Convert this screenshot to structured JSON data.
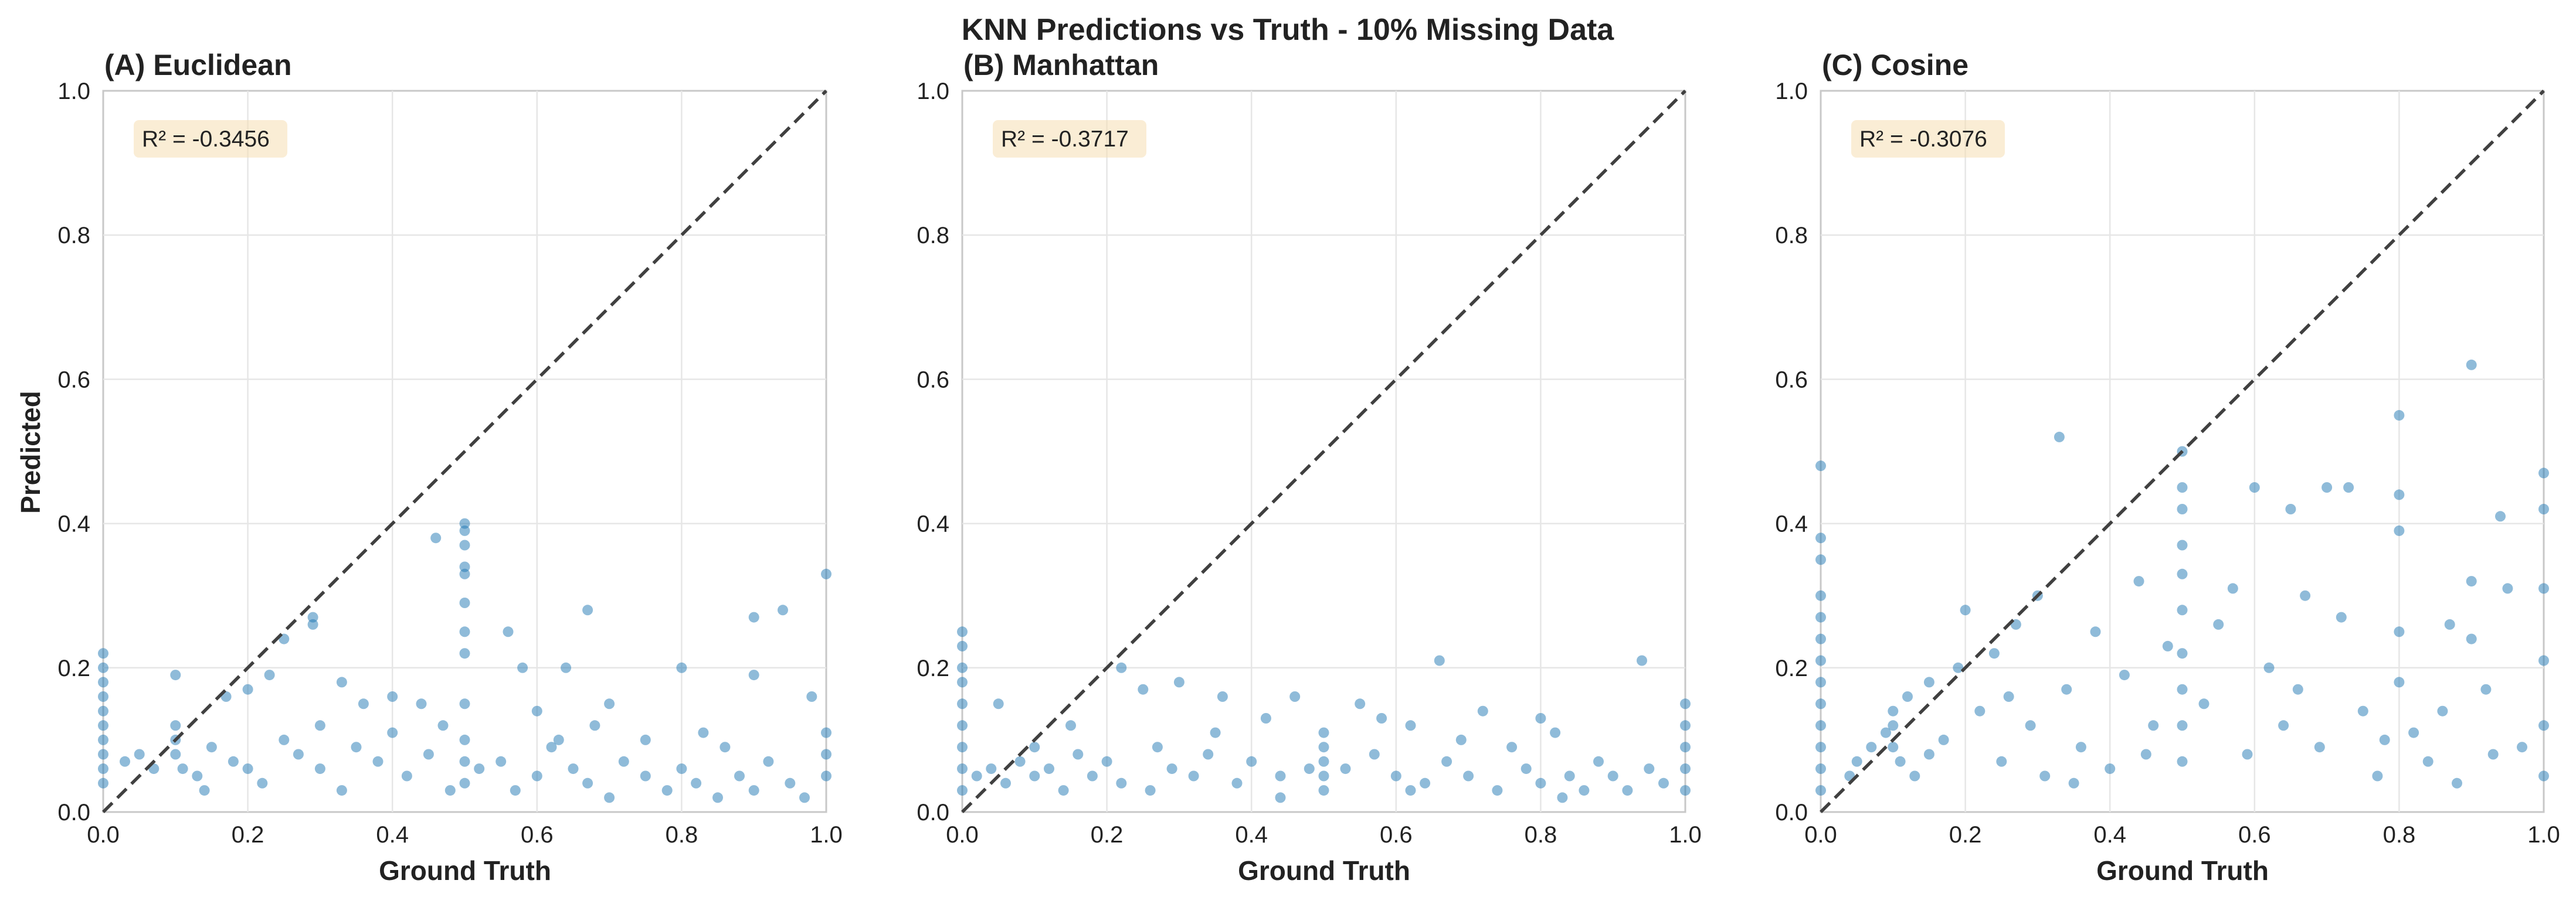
{
  "chart_data": {
    "title": "KNN Predictions vs Truth - 10% Missing Data",
    "type": "scatter",
    "xlabel": "Ground Truth",
    "ylabel": "Predicted",
    "xlim": [
      0,
      1
    ],
    "ylim": [
      0,
      1
    ],
    "ticks": [
      "0.0",
      "0.2",
      "0.4",
      "0.6",
      "0.8",
      "1.0"
    ],
    "grid": true,
    "reference_line": "y = x (dashed)",
    "point_color": "#1f77b4",
    "panels": [
      {
        "id": "A",
        "title": "(A) Euclidean",
        "r2_text": "R² = -0.3456",
        "points": [
          [
            0.5,
            0.4
          ],
          [
            0.5,
            0.39
          ],
          [
            0.5,
            0.37
          ],
          [
            0.5,
            0.34
          ],
          [
            0.5,
            0.33
          ],
          [
            0.5,
            0.29
          ],
          [
            0.5,
            0.25
          ],
          [
            0.5,
            0.22
          ],
          [
            0.5,
            0.15
          ],
          [
            0.5,
            0.1
          ],
          [
            0.5,
            0.07
          ],
          [
            0.5,
            0.04
          ],
          [
            0.46,
            0.38
          ],
          [
            0.29,
            0.27
          ],
          [
            0.29,
            0.26
          ],
          [
            0.25,
            0.24
          ],
          [
            0.1,
            0.19
          ],
          [
            0.56,
            0.25
          ],
          [
            0.58,
            0.2
          ],
          [
            0.67,
            0.28
          ],
          [
            0.64,
            0.2
          ],
          [
            0.8,
            0.2
          ],
          [
            0.9,
            0.27
          ],
          [
            0.94,
            0.28
          ],
          [
            1.0,
            0.33
          ],
          [
            0.9,
            0.19
          ],
          [
            0.17,
            0.16
          ],
          [
            0.2,
            0.17
          ],
          [
            0.23,
            0.19
          ],
          [
            0.33,
            0.18
          ],
          [
            0.36,
            0.15
          ],
          [
            0.4,
            0.16
          ],
          [
            0.44,
            0.15
          ],
          [
            0.6,
            0.14
          ],
          [
            0.7,
            0.15
          ],
          [
            0.75,
            0.1
          ],
          [
            0.86,
            0.09
          ],
          [
            0.98,
            0.16
          ],
          [
            0.0,
            0.22
          ],
          [
            0.0,
            0.2
          ],
          [
            0.0,
            0.18
          ],
          [
            0.0,
            0.16
          ],
          [
            0.0,
            0.14
          ],
          [
            0.0,
            0.12
          ],
          [
            0.0,
            0.1
          ],
          [
            0.0,
            0.08
          ],
          [
            0.0,
            0.06
          ],
          [
            0.0,
            0.04
          ],
          [
            0.03,
            0.07
          ],
          [
            0.05,
            0.08
          ],
          [
            0.07,
            0.06
          ],
          [
            0.1,
            0.12
          ],
          [
            0.1,
            0.1
          ],
          [
            0.1,
            0.08
          ],
          [
            0.11,
            0.06
          ],
          [
            0.13,
            0.05
          ],
          [
            0.15,
            0.09
          ],
          [
            0.18,
            0.07
          ],
          [
            0.2,
            0.06
          ],
          [
            0.22,
            0.04
          ],
          [
            0.25,
            0.1
          ],
          [
            0.27,
            0.08
          ],
          [
            0.3,
            0.06
          ],
          [
            0.33,
            0.03
          ],
          [
            0.35,
            0.09
          ],
          [
            0.38,
            0.07
          ],
          [
            0.4,
            0.11
          ],
          [
            0.42,
            0.05
          ],
          [
            0.45,
            0.08
          ],
          [
            0.48,
            0.03
          ],
          [
            0.52,
            0.06
          ],
          [
            0.55,
            0.07
          ],
          [
            0.57,
            0.03
          ],
          [
            0.6,
            0.05
          ],
          [
            0.62,
            0.09
          ],
          [
            0.65,
            0.06
          ],
          [
            0.67,
            0.04
          ],
          [
            0.7,
            0.02
          ],
          [
            0.72,
            0.07
          ],
          [
            0.75,
            0.05
          ],
          [
            0.78,
            0.03
          ],
          [
            0.8,
            0.06
          ],
          [
            0.82,
            0.04
          ],
          [
            0.85,
            0.02
          ],
          [
            0.88,
            0.05
          ],
          [
            0.9,
            0.03
          ],
          [
            0.92,
            0.07
          ],
          [
            0.95,
            0.04
          ],
          [
            0.97,
            0.02
          ],
          [
            1.0,
            0.05
          ],
          [
            1.0,
            0.08
          ],
          [
            1.0,
            0.11
          ],
          [
            0.14,
            0.03
          ],
          [
            0.3,
            0.12
          ],
          [
            0.47,
            0.12
          ],
          [
            0.63,
            0.1
          ],
          [
            0.68,
            0.12
          ],
          [
            0.83,
            0.11
          ]
        ]
      },
      {
        "id": "B",
        "title": "(B) Manhattan",
        "r2_text": "R² = -0.3717",
        "points": [
          [
            0.0,
            0.25
          ],
          [
            0.0,
            0.23
          ],
          [
            0.0,
            0.2
          ],
          [
            0.0,
            0.18
          ],
          [
            0.0,
            0.15
          ],
          [
            0.0,
            0.12
          ],
          [
            0.0,
            0.09
          ],
          [
            0.0,
            0.06
          ],
          [
            0.0,
            0.03
          ],
          [
            0.02,
            0.05
          ],
          [
            0.04,
            0.06
          ],
          [
            0.06,
            0.04
          ],
          [
            0.08,
            0.07
          ],
          [
            0.1,
            0.09
          ],
          [
            0.1,
            0.05
          ],
          [
            0.12,
            0.06
          ],
          [
            0.14,
            0.03
          ],
          [
            0.16,
            0.08
          ],
          [
            0.18,
            0.05
          ],
          [
            0.2,
            0.07
          ],
          [
            0.22,
            0.04
          ],
          [
            0.22,
            0.2
          ],
          [
            0.25,
            0.17
          ],
          [
            0.27,
            0.09
          ],
          [
            0.29,
            0.06
          ],
          [
            0.3,
            0.18
          ],
          [
            0.32,
            0.05
          ],
          [
            0.34,
            0.08
          ],
          [
            0.36,
            0.16
          ],
          [
            0.38,
            0.04
          ],
          [
            0.4,
            0.07
          ],
          [
            0.42,
            0.13
          ],
          [
            0.44,
            0.05
          ],
          [
            0.46,
            0.16
          ],
          [
            0.48,
            0.06
          ],
          [
            0.5,
            0.11
          ],
          [
            0.5,
            0.09
          ],
          [
            0.5,
            0.07
          ],
          [
            0.5,
            0.05
          ],
          [
            0.5,
            0.03
          ],
          [
            0.53,
            0.06
          ],
          [
            0.55,
            0.15
          ],
          [
            0.57,
            0.08
          ],
          [
            0.6,
            0.05
          ],
          [
            0.62,
            0.12
          ],
          [
            0.64,
            0.04
          ],
          [
            0.66,
            0.21
          ],
          [
            0.67,
            0.07
          ],
          [
            0.7,
            0.05
          ],
          [
            0.72,
            0.14
          ],
          [
            0.74,
            0.03
          ],
          [
            0.76,
            0.09
          ],
          [
            0.78,
            0.06
          ],
          [
            0.8,
            0.04
          ],
          [
            0.82,
            0.11
          ],
          [
            0.84,
            0.05
          ],
          [
            0.86,
            0.03
          ],
          [
            0.88,
            0.07
          ],
          [
            0.9,
            0.05
          ],
          [
            0.92,
            0.03
          ],
          [
            0.94,
            0.21
          ],
          [
            0.95,
            0.06
          ],
          [
            0.97,
            0.04
          ],
          [
            1.0,
            0.15
          ],
          [
            1.0,
            0.12
          ],
          [
            1.0,
            0.09
          ],
          [
            1.0,
            0.06
          ],
          [
            1.0,
            0.03
          ],
          [
            0.05,
            0.15
          ],
          [
            0.15,
            0.12
          ],
          [
            0.35,
            0.11
          ],
          [
            0.58,
            0.13
          ],
          [
            0.69,
            0.1
          ],
          [
            0.8,
            0.13
          ],
          [
            0.26,
            0.03
          ],
          [
            0.44,
            0.02
          ],
          [
            0.62,
            0.03
          ],
          [
            0.83,
            0.02
          ]
        ]
      },
      {
        "id": "C",
        "title": "(C) Cosine",
        "r2_text": "R² = -0.3076",
        "points": [
          [
            0.0,
            0.48
          ],
          [
            0.0,
            0.38
          ],
          [
            0.0,
            0.35
          ],
          [
            0.0,
            0.3
          ],
          [
            0.0,
            0.27
          ],
          [
            0.0,
            0.24
          ],
          [
            0.0,
            0.21
          ],
          [
            0.0,
            0.18
          ],
          [
            0.0,
            0.15
          ],
          [
            0.0,
            0.12
          ],
          [
            0.0,
            0.09
          ],
          [
            0.0,
            0.06
          ],
          [
            0.0,
            0.03
          ],
          [
            0.04,
            0.05
          ],
          [
            0.05,
            0.07
          ],
          [
            0.07,
            0.09
          ],
          [
            0.09,
            0.11
          ],
          [
            0.1,
            0.14
          ],
          [
            0.1,
            0.12
          ],
          [
            0.1,
            0.09
          ],
          [
            0.11,
            0.07
          ],
          [
            0.12,
            0.16
          ],
          [
            0.13,
            0.05
          ],
          [
            0.15,
            0.18
          ],
          [
            0.17,
            0.1
          ],
          [
            0.19,
            0.2
          ],
          [
            0.2,
            0.28
          ],
          [
            0.22,
            0.14
          ],
          [
            0.24,
            0.22
          ],
          [
            0.25,
            0.07
          ],
          [
            0.27,
            0.26
          ],
          [
            0.29,
            0.12
          ],
          [
            0.3,
            0.3
          ],
          [
            0.31,
            0.05
          ],
          [
            0.33,
            0.52
          ],
          [
            0.34,
            0.17
          ],
          [
            0.36,
            0.09
          ],
          [
            0.38,
            0.25
          ],
          [
            0.4,
            0.06
          ],
          [
            0.42,
            0.19
          ],
          [
            0.44,
            0.32
          ],
          [
            0.46,
            0.12
          ],
          [
            0.48,
            0.23
          ],
          [
            0.5,
            0.5
          ],
          [
            0.5,
            0.45
          ],
          [
            0.5,
            0.42
          ],
          [
            0.5,
            0.37
          ],
          [
            0.5,
            0.33
          ],
          [
            0.5,
            0.28
          ],
          [
            0.5,
            0.22
          ],
          [
            0.5,
            0.17
          ],
          [
            0.5,
            0.12
          ],
          [
            0.5,
            0.07
          ],
          [
            0.53,
            0.15
          ],
          [
            0.55,
            0.26
          ],
          [
            0.57,
            0.31
          ],
          [
            0.59,
            0.08
          ],
          [
            0.6,
            0.45
          ],
          [
            0.62,
            0.2
          ],
          [
            0.64,
            0.12
          ],
          [
            0.65,
            0.42
          ],
          [
            0.67,
            0.3
          ],
          [
            0.69,
            0.09
          ],
          [
            0.7,
            0.45
          ],
          [
            0.72,
            0.27
          ],
          [
            0.73,
            0.45
          ],
          [
            0.75,
            0.14
          ],
          [
            0.77,
            0.05
          ],
          [
            0.8,
            0.55
          ],
          [
            0.8,
            0.44
          ],
          [
            0.8,
            0.39
          ],
          [
            0.8,
            0.25
          ],
          [
            0.8,
            0.18
          ],
          [
            0.82,
            0.11
          ],
          [
            0.84,
            0.07
          ],
          [
            0.86,
            0.14
          ],
          [
            0.88,
            0.04
          ],
          [
            0.9,
            0.62
          ],
          [
            0.9,
            0.32
          ],
          [
            0.9,
            0.24
          ],
          [
            0.92,
            0.17
          ],
          [
            0.94,
            0.41
          ],
          [
            0.95,
            0.31
          ],
          [
            0.97,
            0.09
          ],
          [
            1.0,
            0.47
          ],
          [
            1.0,
            0.42
          ],
          [
            1.0,
            0.31
          ],
          [
            1.0,
            0.21
          ],
          [
            1.0,
            0.12
          ],
          [
            1.0,
            0.05
          ],
          [
            0.15,
            0.08
          ],
          [
            0.26,
            0.16
          ],
          [
            0.35,
            0.04
          ],
          [
            0.45,
            0.08
          ],
          [
            0.66,
            0.17
          ],
          [
            0.78,
            0.1
          ],
          [
            0.87,
            0.26
          ],
          [
            0.93,
            0.08
          ]
        ]
      }
    ]
  }
}
